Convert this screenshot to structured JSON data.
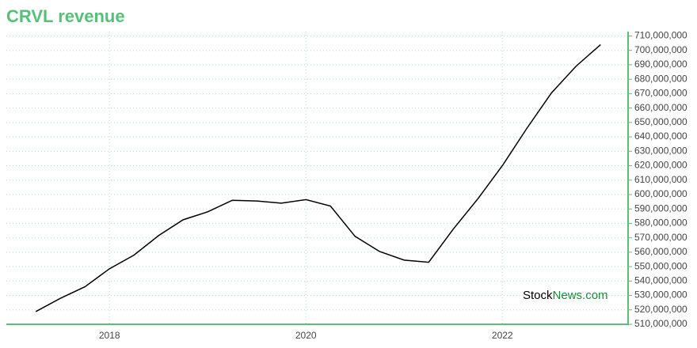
{
  "chart_data": {
    "type": "line",
    "title": "CRVL revenue",
    "x": [
      2017.25,
      2017.5,
      2017.75,
      2018.0,
      2018.25,
      2018.5,
      2018.75,
      2019.0,
      2019.25,
      2019.5,
      2019.75,
      2020.0,
      2020.25,
      2020.5,
      2020.75,
      2021.0,
      2021.25,
      2021.5,
      2021.75,
      2022.0,
      2022.25,
      2022.5,
      2022.75,
      2023.0
    ],
    "series": [
      {
        "name": "revenue",
        "color": "#000000",
        "values": [
          518800000,
          528000000,
          536000000,
          548500000,
          558000000,
          571500000,
          582500000,
          588000000,
          596000000,
          595500000,
          594000000,
          596500000,
          592000000,
          571000000,
          560500000,
          554500000,
          553000000,
          576000000,
          597000000,
          620000000,
          646000000,
          670500000,
          689000000,
          704000000
        ]
      }
    ],
    "xlim": [
      2016.95,
      2023.28
    ],
    "xticks": [
      2018,
      2020,
      2022
    ],
    "ylim": [
      510000000,
      713000000
    ],
    "yticks": [
      {
        "value": 510000000,
        "label": "510,000,000"
      },
      {
        "value": 520000000,
        "label": "520,000,000"
      },
      {
        "value": 530000000,
        "label": "530,000,000"
      },
      {
        "value": 540000000,
        "label": "540,000,000"
      },
      {
        "value": 550000000,
        "label": "550,000,000"
      },
      {
        "value": 560000000,
        "label": "560,000,000"
      },
      {
        "value": 570000000,
        "label": "570,000,000"
      },
      {
        "value": 580000000,
        "label": "580,000,000"
      },
      {
        "value": 590000000,
        "label": "590,000,000"
      },
      {
        "value": 600000000,
        "label": "600,000,000"
      },
      {
        "value": 610000000,
        "label": "610,000,000"
      },
      {
        "value": 620000000,
        "label": "620,000,000"
      },
      {
        "value": 630000000,
        "label": "630,000,000"
      },
      {
        "value": 640000000,
        "label": "640,000,000"
      },
      {
        "value": 650000000,
        "label": "650,000,000"
      },
      {
        "value": 660000000,
        "label": "660,000,000"
      },
      {
        "value": 670000000,
        "label": "670,000,000"
      },
      {
        "value": 680000000,
        "label": "680,000,000"
      },
      {
        "value": 690000000,
        "label": "690,000,000"
      },
      {
        "value": 700000000,
        "label": "700,000,000"
      },
      {
        "value": 710000000,
        "label": "710,000,000"
      }
    ],
    "grid": true,
    "watermark": {
      "first": "Stock",
      "second": "News.com"
    }
  }
}
